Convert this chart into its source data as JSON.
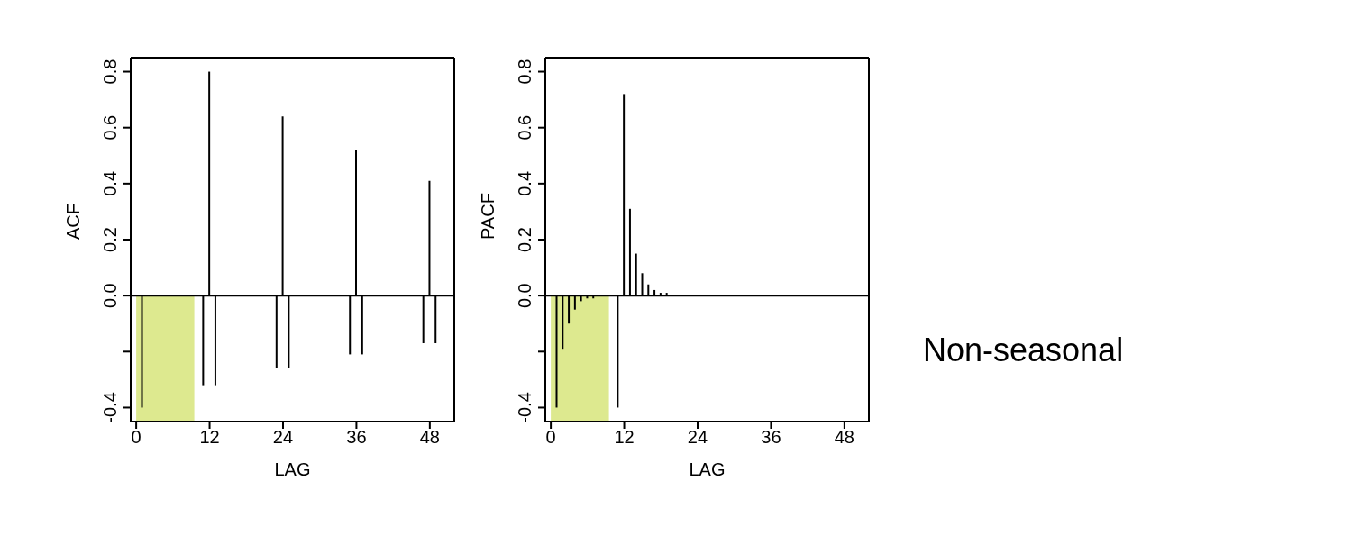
{
  "chart_data": [
    {
      "type": "bar",
      "xlabel": "LAG",
      "ylabel": "ACF",
      "x": [
        1,
        11,
        12,
        13,
        23,
        24,
        25,
        35,
        36,
        37,
        47,
        48,
        49
      ],
      "series": [
        {
          "color": "#000000",
          "values": [
            -0.4,
            -0.32,
            0.8,
            -0.32,
            -0.26,
            0.64,
            -0.26,
            -0.21,
            0.52,
            -0.21,
            -0.17,
            0.41,
            -0.17
          ]
        }
      ],
      "xlim": [
        -0.9,
        52
      ],
      "xticks": [
        0,
        12,
        24,
        36,
        48
      ],
      "ylim": [
        -0.45,
        0.85
      ],
      "yticks": [
        {
          "value": -0.4,
          "label": "-0.4"
        },
        {
          "value": -0.2,
          "label": null
        },
        {
          "value": 0,
          "label": "0.0"
        },
        {
          "value": 0.2,
          "label": "0.2"
        },
        {
          "value": 0.4,
          "label": "0.4"
        },
        {
          "value": 0.6,
          "label": "0.6"
        },
        {
          "value": 0.8,
          "label": "0.8"
        }
      ],
      "ref_lines": [
        {
          "axis": "y",
          "value": 0,
          "color": "#000000"
        }
      ],
      "bands": [
        {
          "axis": "x",
          "from": 0,
          "to": 9.5,
          "color": "#dde98f"
        }
      ]
    },
    {
      "type": "bar",
      "xlabel": "LAG",
      "ylabel": "PACF",
      "x": [
        1,
        2,
        3,
        4,
        5,
        6,
        7,
        8,
        11,
        12,
        13,
        14,
        15,
        16,
        17,
        18,
        19
      ],
      "series": [
        {
          "color": "#000000",
          "values": [
            -0.4,
            -0.19,
            -0.1,
            -0.05,
            -0.02,
            -0.01,
            -0.01,
            0,
            -0.4,
            0.72,
            0.31,
            0.15,
            0.08,
            0.04,
            0.02,
            0.01,
            0.01
          ]
        }
      ],
      "xlim": [
        -0.9,
        52
      ],
      "xticks": [
        0,
        12,
        24,
        36,
        48
      ],
      "ylim": [
        -0.45,
        0.85
      ],
      "yticks": [
        {
          "value": -0.4,
          "label": "-0.4"
        },
        {
          "value": -0.2,
          "label": null
        },
        {
          "value": 0,
          "label": "0.0"
        },
        {
          "value": 0.2,
          "label": "0.2"
        },
        {
          "value": 0.4,
          "label": "0.4"
        },
        {
          "value": 0.6,
          "label": "0.6"
        },
        {
          "value": 0.8,
          "label": "0.8"
        }
      ],
      "ref_lines": [
        {
          "axis": "y",
          "value": 0,
          "color": "#000000"
        }
      ],
      "bands": [
        {
          "axis": "x",
          "from": 0,
          "to": 9.5,
          "color": "#dde98f"
        }
      ]
    },
    {
      "type": "other",
      "title": "Non-seasonal"
    }
  ]
}
